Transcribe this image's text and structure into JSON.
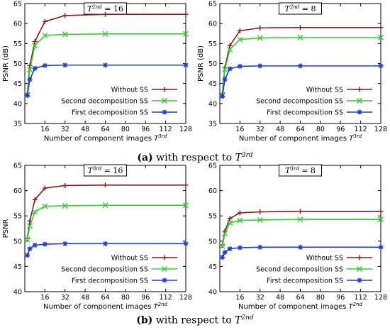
{
  "chart_data": [
    {
      "type": "line",
      "panel": "a-left",
      "title": "T^{2nd} = 16",
      "title_symbol": "T",
      "title_sup": "2nd",
      "title_value": "= 16",
      "xlabel": "Number of component images",
      "xlabel_symbol": "T",
      "xlabel_sup": "3rd",
      "ylabel": "PSNR (dB)",
      "xlim": [
        0,
        128
      ],
      "ylim": [
        35,
        65
      ],
      "xticks": [
        16,
        32,
        48,
        64,
        80,
        96,
        112,
        128
      ],
      "yticks": [
        35,
        40,
        45,
        50,
        55,
        60,
        65
      ],
      "legend_position": "bottom-right",
      "series": [
        {
          "name": "Without SS",
          "color": "#8b1a1a",
          "marker": "plus",
          "x": [
            2,
            4,
            8,
            16,
            32,
            64,
            128
          ],
          "y": [
            42.5,
            49.5,
            55.5,
            60.5,
            62.0,
            62.3,
            62.3
          ]
        },
        {
          "name": "Second decomposition SS",
          "color": "#33cc33",
          "marker": "x",
          "x": [
            2,
            4,
            8,
            16,
            32,
            64,
            128
          ],
          "y": [
            42.2,
            48.5,
            54.5,
            57.0,
            57.3,
            57.4,
            57.4
          ]
        },
        {
          "name": "First decomposition SS",
          "color": "#1f3ad4",
          "marker": "star",
          "x": [
            2,
            4,
            8,
            16,
            32,
            64,
            128
          ],
          "y": [
            42.0,
            46.0,
            48.8,
            49.5,
            49.6,
            49.6,
            49.6
          ]
        }
      ]
    },
    {
      "type": "line",
      "panel": "a-right",
      "title": "T^{2nd} = 8",
      "title_symbol": "T",
      "title_sup": "2nd",
      "title_value": "= 8",
      "xlabel": "Number of component images",
      "xlabel_symbol": "T",
      "xlabel_sup": "3rd",
      "ylabel": "PSNR (dB)",
      "xlim": [
        0,
        128
      ],
      "ylim": [
        35,
        65
      ],
      "xticks": [
        16,
        32,
        48,
        64,
        80,
        96,
        112,
        128
      ],
      "yticks": [
        35,
        40,
        45,
        50,
        55,
        60,
        65
      ],
      "legend_position": "bottom-right",
      "series": [
        {
          "name": "Without SS",
          "color": "#8b1a1a",
          "marker": "plus",
          "x": [
            2,
            4,
            8,
            16,
            32,
            64,
            128
          ],
          "y": [
            42.5,
            49.0,
            54.5,
            58.2,
            58.9,
            59.0,
            59.0
          ]
        },
        {
          "name": "Second decomposition SS",
          "color": "#33cc33",
          "marker": "x",
          "x": [
            2,
            4,
            8,
            16,
            32,
            64,
            128
          ],
          "y": [
            42.2,
            48.5,
            53.5,
            56.0,
            56.4,
            56.5,
            56.5
          ]
        },
        {
          "name": "First decomposition SS",
          "color": "#1f3ad4",
          "marker": "star",
          "x": [
            2,
            4,
            8,
            16,
            32,
            64,
            128
          ],
          "y": [
            41.8,
            46.0,
            48.7,
            49.3,
            49.4,
            49.4,
            49.4
          ]
        }
      ]
    },
    {
      "type": "line",
      "panel": "b-left",
      "title": "T^{3rd} = 16",
      "title_symbol": "T",
      "title_sup": "3rd",
      "title_value": "= 16",
      "xlabel": "Number of component images",
      "xlabel_symbol": "T",
      "xlabel_sup": "2nd",
      "ylabel": "PSNR",
      "xlim": [
        0,
        128
      ],
      "ylim": [
        40,
        65
      ],
      "xticks": [
        16,
        32,
        48,
        64,
        80,
        96,
        112,
        128
      ],
      "yticks": [
        40,
        45,
        50,
        55,
        60,
        65
      ],
      "legend_position": "bottom-right",
      "series": [
        {
          "name": "Without SS",
          "color": "#8b1a1a",
          "marker": "plus",
          "x": [
            2,
            4,
            8,
            16,
            32,
            64,
            128
          ],
          "y": [
            50.5,
            54.0,
            58.2,
            60.5,
            61.0,
            61.1,
            61.1
          ]
        },
        {
          "name": "Second decomposition SS",
          "color": "#33cc33",
          "marker": "x",
          "x": [
            2,
            4,
            8,
            16,
            32,
            64,
            128
          ],
          "y": [
            50.3,
            53.0,
            55.8,
            56.9,
            57.0,
            57.1,
            57.1
          ]
        },
        {
          "name": "First decomposition SS",
          "color": "#1f3ad4",
          "marker": "star",
          "x": [
            2,
            4,
            8,
            16,
            32,
            64,
            128
          ],
          "y": [
            47.2,
            48.5,
            49.2,
            49.4,
            49.5,
            49.5,
            49.5
          ]
        }
      ]
    },
    {
      "type": "line",
      "panel": "b-right",
      "title": "T^{3rd} = 8",
      "title_symbol": "T",
      "title_sup": "3rd",
      "title_value": "= 8",
      "xlabel": "Number of component images",
      "xlabel_symbol": "T",
      "xlabel_sup": "2nd",
      "ylabel": "",
      "xlim": [
        0,
        128
      ],
      "ylim": [
        40,
        65
      ],
      "xticks": [
        16,
        32,
        48,
        64,
        80,
        96,
        112,
        128
      ],
      "yticks": [
        40,
        45,
        50,
        55,
        60,
        65
      ],
      "legend_position": "bottom-right",
      "series": [
        {
          "name": "Without SS",
          "color": "#8b1a1a",
          "marker": "plus",
          "x": [
            2,
            4,
            8,
            16,
            32,
            64,
            128
          ],
          "y": [
            49.2,
            52.0,
            54.5,
            55.6,
            55.8,
            55.9,
            55.9
          ]
        },
        {
          "name": "Second decomposition SS",
          "color": "#33cc33",
          "marker": "x",
          "x": [
            2,
            4,
            8,
            16,
            32,
            64,
            128
          ],
          "y": [
            49.0,
            51.5,
            53.6,
            54.1,
            54.2,
            54.3,
            54.3
          ]
        },
        {
          "name": "First decomposition SS",
          "color": "#1f3ad4",
          "marker": "star",
          "x": [
            2,
            4,
            8,
            16,
            32,
            64,
            128
          ],
          "y": [
            46.8,
            47.8,
            48.5,
            48.7,
            48.8,
            48.8,
            48.8
          ]
        }
      ]
    }
  ],
  "captions": [
    {
      "label": "(a)",
      "text": "with respect to",
      "symbol": "T",
      "sup": "3rd"
    },
    {
      "label": "(b)",
      "text": "with respect to",
      "symbol": "T",
      "sup": "2nd"
    }
  ]
}
